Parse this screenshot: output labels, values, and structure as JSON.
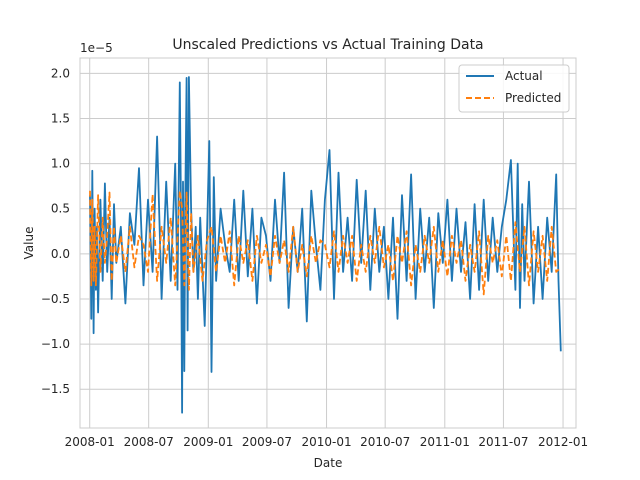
{
  "chart_data": {
    "type": "line",
    "title": "Unscaled Predictions vs Actual Training Data",
    "xlabel": "Date",
    "ylabel": "Value",
    "y_scale_note": "1e−5",
    "xlim": [
      "2007-12-02",
      "2012-02-10"
    ],
    "ylim": [
      -1.93,
      2.17
    ],
    "x_ticks": [
      "2008-01",
      "2008-07",
      "2009-01",
      "2009-07",
      "2010-01",
      "2010-07",
      "2011-01",
      "2011-07",
      "2012-01"
    ],
    "y_ticks": [
      -1.5,
      -1.0,
      -0.5,
      0.0,
      0.5,
      1.0,
      1.5,
      2.0
    ],
    "y_tick_labels": [
      "−1.5",
      "−1.0",
      "−0.5",
      "0.0",
      "0.5",
      "1.0",
      "1.5",
      "2.0"
    ],
    "grid": true,
    "legend_position": "top-right",
    "series": [
      {
        "name": "Actual",
        "color": "#1f77b4",
        "style": "solid",
        "x": [
          "2008-01-02",
          "2008-01-06",
          "2008-01-09",
          "2008-01-13",
          "2008-01-16",
          "2008-01-20",
          "2008-01-23",
          "2008-01-27",
          "2008-02-03",
          "2008-02-10",
          "2008-02-17",
          "2008-02-24",
          "2008-03-02",
          "2008-03-09",
          "2008-03-16",
          "2008-03-23",
          "2008-04-06",
          "2008-04-20",
          "2008-05-04",
          "2008-05-18",
          "2008-06-01",
          "2008-06-15",
          "2008-06-29",
          "2008-07-13",
          "2008-07-27",
          "2008-08-10",
          "2008-08-24",
          "2008-09-07",
          "2008-09-21",
          "2008-09-28",
          "2008-10-05",
          "2008-10-08",
          "2008-10-12",
          "2008-10-15",
          "2008-10-19",
          "2008-10-22",
          "2008-10-26",
          "2008-10-29",
          "2008-11-02",
          "2008-11-09",
          "2008-11-16",
          "2008-11-23",
          "2008-11-30",
          "2008-12-07",
          "2008-12-21",
          "2009-01-04",
          "2009-01-11",
          "2009-01-18",
          "2009-01-25",
          "2009-02-08",
          "2009-02-22",
          "2009-03-08",
          "2009-03-22",
          "2009-04-05",
          "2009-04-19",
          "2009-05-03",
          "2009-05-17",
          "2009-05-31",
          "2009-06-14",
          "2009-06-28",
          "2009-07-12",
          "2009-07-26",
          "2009-08-09",
          "2009-08-23",
          "2009-09-06",
          "2009-09-20",
          "2009-10-04",
          "2009-10-18",
          "2009-11-01",
          "2009-11-15",
          "2009-11-29",
          "2009-12-13",
          "2009-12-27",
          "2010-01-10",
          "2010-01-24",
          "2010-02-07",
          "2010-02-21",
          "2010-03-07",
          "2010-03-21",
          "2010-04-04",
          "2010-04-18",
          "2010-05-02",
          "2010-05-16",
          "2010-05-30",
          "2010-06-13",
          "2010-06-27",
          "2010-07-11",
          "2010-07-25",
          "2010-08-08",
          "2010-08-22",
          "2010-09-05",
          "2010-09-19",
          "2010-10-03",
          "2010-10-17",
          "2010-10-31",
          "2010-11-14",
          "2010-11-28",
          "2010-12-12",
          "2010-12-26",
          "2011-01-09",
          "2011-01-23",
          "2011-02-06",
          "2011-02-20",
          "2011-03-06",
          "2011-03-20",
          "2011-04-03",
          "2011-04-17",
          "2011-05-01",
          "2011-05-15",
          "2011-05-29",
          "2011-06-12",
          "2011-06-26",
          "2011-07-10",
          "2011-07-24",
          "2011-08-07",
          "2011-08-14",
          "2011-08-21",
          "2011-08-28",
          "2011-09-04",
          "2011-09-18",
          "2011-10-02",
          "2011-10-16",
          "2011-10-30",
          "2011-11-13",
          "2011-11-27",
          "2011-12-11",
          "2011-12-18",
          "2011-12-25"
        ],
        "values": [
          0.65,
          -0.72,
          0.92,
          -0.88,
          0.5,
          -0.4,
          0.3,
          -0.65,
          0.6,
          -0.3,
          0.78,
          -0.2,
          0.4,
          -0.5,
          0.55,
          -0.1,
          0.3,
          -0.55,
          0.45,
          0.1,
          0.95,
          -0.35,
          0.6,
          -0.2,
          1.3,
          -0.5,
          0.8,
          -0.3,
          1.0,
          -0.4,
          1.9,
          0.7,
          -1.76,
          0.8,
          -1.3,
          0.6,
          1.95,
          -0.85,
          1.96,
          0.5,
          -0.2,
          0.3,
          -0.5,
          0.4,
          -0.8,
          1.25,
          -1.31,
          0.85,
          -0.3,
          0.5,
          0.1,
          -0.2,
          0.6,
          -0.3,
          0.7,
          -0.25,
          0.5,
          -0.55,
          0.4,
          0.2,
          -0.3,
          0.6,
          -0.1,
          0.9,
          -0.6,
          0.3,
          -0.2,
          0.5,
          -0.75,
          0.7,
          0.1,
          -0.4,
          0.6,
          1.15,
          -0.5,
          0.9,
          -0.2,
          0.4,
          -0.3,
          0.82,
          -0.1,
          0.7,
          -0.4,
          0.5,
          -0.2,
          0.3,
          -0.5,
          0.4,
          -0.72,
          0.65,
          -0.3,
          0.88,
          -0.5,
          0.5,
          -0.2,
          0.4,
          -0.6,
          0.45,
          -0.1,
          0.6,
          -0.3,
          0.5,
          -0.2,
          0.35,
          -0.5,
          0.55,
          -0.4,
          0.6,
          -0.3,
          0.4,
          -0.2,
          0.3,
          0.6,
          1.04,
          -0.4,
          1.0,
          -0.6,
          0.55,
          -0.3,
          0.8,
          -0.55,
          0.3,
          -0.5,
          0.4,
          -0.2,
          0.88,
          -0.3,
          -1.08
        ]
      },
      {
        "name": "Predicted",
        "color": "#ff7f0e",
        "style": "dashed",
        "x": [
          "2008-01-02",
          "2008-01-06",
          "2008-01-09",
          "2008-01-13",
          "2008-01-16",
          "2008-01-20",
          "2008-01-27",
          "2008-02-03",
          "2008-02-10",
          "2008-02-17",
          "2008-02-24",
          "2008-03-02",
          "2008-03-09",
          "2008-03-16",
          "2008-03-23",
          "2008-04-06",
          "2008-04-20",
          "2008-05-04",
          "2008-05-18",
          "2008-06-01",
          "2008-06-15",
          "2008-06-29",
          "2008-07-13",
          "2008-07-27",
          "2008-08-10",
          "2008-08-24",
          "2008-09-07",
          "2008-09-21",
          "2008-10-05",
          "2008-10-12",
          "2008-10-19",
          "2008-10-26",
          "2008-11-02",
          "2008-11-09",
          "2008-11-16",
          "2008-11-30",
          "2008-12-14",
          "2008-12-28",
          "2009-01-11",
          "2009-01-25",
          "2009-02-08",
          "2009-02-22",
          "2009-03-08",
          "2009-03-22",
          "2009-04-05",
          "2009-04-19",
          "2009-05-03",
          "2009-05-17",
          "2009-05-31",
          "2009-06-14",
          "2009-06-28",
          "2009-07-12",
          "2009-07-26",
          "2009-08-09",
          "2009-08-23",
          "2009-09-06",
          "2009-09-20",
          "2009-10-04",
          "2009-10-18",
          "2009-11-01",
          "2009-11-15",
          "2009-11-29",
          "2009-12-13",
          "2009-12-27",
          "2010-01-10",
          "2010-01-24",
          "2010-02-07",
          "2010-02-21",
          "2010-03-07",
          "2010-03-21",
          "2010-04-04",
          "2010-04-18",
          "2010-05-02",
          "2010-05-16",
          "2010-05-30",
          "2010-06-13",
          "2010-06-27",
          "2010-07-11",
          "2010-07-25",
          "2010-08-08",
          "2010-08-22",
          "2010-09-05",
          "2010-09-19",
          "2010-10-03",
          "2010-10-17",
          "2010-10-31",
          "2010-11-14",
          "2010-11-28",
          "2010-12-12",
          "2010-12-26",
          "2011-01-09",
          "2011-01-23",
          "2011-02-06",
          "2011-02-20",
          "2011-03-06",
          "2011-03-20",
          "2011-04-03",
          "2011-04-17",
          "2011-05-01",
          "2011-05-15",
          "2011-05-29",
          "2011-06-12",
          "2011-06-26",
          "2011-07-10",
          "2011-07-24",
          "2011-08-07",
          "2011-08-21",
          "2011-09-04",
          "2011-09-18",
          "2011-10-02",
          "2011-10-16",
          "2011-10-30",
          "2011-11-13",
          "2011-11-27",
          "2011-12-11",
          "2011-12-25"
        ],
        "values": [
          0.7,
          -0.35,
          0.6,
          -0.3,
          0.3,
          -0.35,
          0.65,
          -0.2,
          0.4,
          -0.1,
          0.2,
          0.68,
          -0.3,
          0.3,
          -0.1,
          0.2,
          -0.2,
          0.3,
          -0.15,
          0.2,
          0.1,
          -0.2,
          0.66,
          -0.3,
          0.3,
          -0.1,
          0.4,
          -0.35,
          0.7,
          0.5,
          -0.35,
          0.68,
          -0.4,
          0.45,
          -0.2,
          0.2,
          -0.3,
          0.15,
          0.3,
          -0.2,
          0.2,
          -0.1,
          0.25,
          -0.35,
          0.2,
          -0.1,
          0.15,
          -0.3,
          0.2,
          -0.1,
          0.1,
          -0.25,
          0.2,
          -0.1,
          0.15,
          -0.2,
          0.3,
          -0.2,
          0.1,
          -0.25,
          0.2,
          -0.1,
          0.15,
          0.1,
          -0.15,
          0.25,
          -0.2,
          0.2,
          -0.1,
          0.2,
          -0.3,
          0.1,
          -0.2,
          0.2,
          -0.1,
          0.3,
          -0.15,
          0.1,
          -0.3,
          0.2,
          -0.1,
          0.25,
          -0.35,
          0.1,
          -0.2,
          0.2,
          -0.1,
          0.3,
          -0.2,
          0.15,
          -0.25,
          0.2,
          -0.1,
          0.15,
          -0.3,
          0.1,
          -0.2,
          0.25,
          -0.45,
          0.2,
          -0.1,
          0.15,
          -0.25,
          0.2,
          -0.3,
          0.35,
          -0.2,
          0.3,
          -0.35,
          0.25,
          -0.2,
          0.2,
          -0.3,
          0.3,
          -0.2,
          -0.15
        ]
      }
    ]
  }
}
